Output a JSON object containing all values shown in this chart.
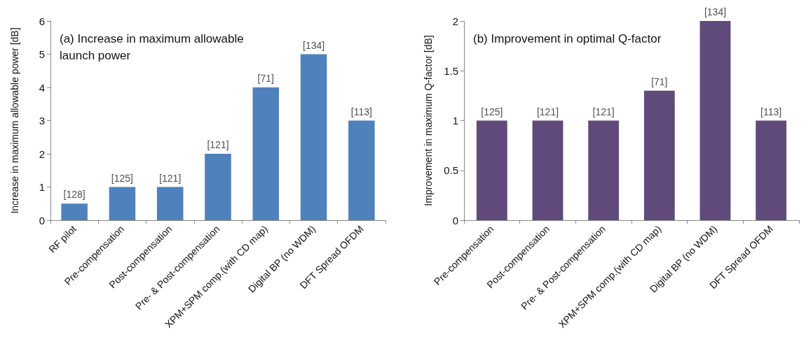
{
  "chart_data": [
    {
      "type": "bar",
      "title": "(a) Increase in maximum allowable launch power",
      "ylabel": "Increase in maximum allowable power [dB]",
      "categories": [
        "RF pilot",
        "Pre-compensation",
        "Post-compensation",
        "Pre- & Post-compensation",
        "XPM+SPM comp.(with CD map)",
        "Digital BP (no WDM)",
        "DFT Spread OFDM"
      ],
      "values": [
        0.5,
        1,
        1,
        2,
        4,
        5,
        3
      ],
      "color": "#4f81bd",
      "ylim": [
        0,
        6
      ],
      "yticks": [
        0,
        1,
        2,
        3,
        4,
        5,
        6
      ],
      "grid": false,
      "annotations": [
        {
          "text": "[128]",
          "x": "RF pilot",
          "y": 0.5
        },
        {
          "text": "[125]",
          "x": "Pre-compensation",
          "y": 1
        },
        {
          "text": "[121]",
          "x": "Post-compensation",
          "y": 1
        },
        {
          "text": "[121]",
          "x": "Pre- & Post-compensation",
          "y": 2
        },
        {
          "text": "[71]",
          "x": "XPM+SPM comp.(with CD map)",
          "y": 4
        },
        {
          "text": "[134]",
          "x": "Digital BP (no WDM)",
          "y": 5
        },
        {
          "text": "[113]",
          "x": "DFT Spread OFDM",
          "y": 3
        }
      ]
    },
    {
      "type": "bar",
      "title": "(b) Improvement in optimal Q-factor",
      "ylabel": "Improvement in maximum Q-factor [dB]",
      "categories": [
        "Pre-compensation",
        "Post-compensation",
        "Pre- & Post-compensation",
        "XPM+SPM comp.(with CD map)",
        "Digital BP (no WDM)",
        "DFT Spread OFDM"
      ],
      "values": [
        1,
        1,
        1,
        1.3,
        2,
        1
      ],
      "color": "#604a7b",
      "ylim": [
        0,
        2
      ],
      "yticks": [
        0,
        0.5,
        1,
        1.5,
        2
      ],
      "grid": false,
      "annotations": [
        {
          "text": "[125]",
          "x": "Pre-compensation",
          "y": 1
        },
        {
          "text": "[121]",
          "x": "Post-compensation",
          "y": 1
        },
        {
          "text": "[121]",
          "x": "Pre- & Post-compensation",
          "y": 1
        },
        {
          "text": "[71]",
          "x": "XPM+SPM comp.(with CD map)",
          "y": 1.3
        },
        {
          "text": "[134]",
          "x": "Digital BP (no WDM)",
          "y": 2
        },
        {
          "text": "[113]",
          "x": "DFT Spread OFDM",
          "y": 1
        }
      ]
    }
  ]
}
